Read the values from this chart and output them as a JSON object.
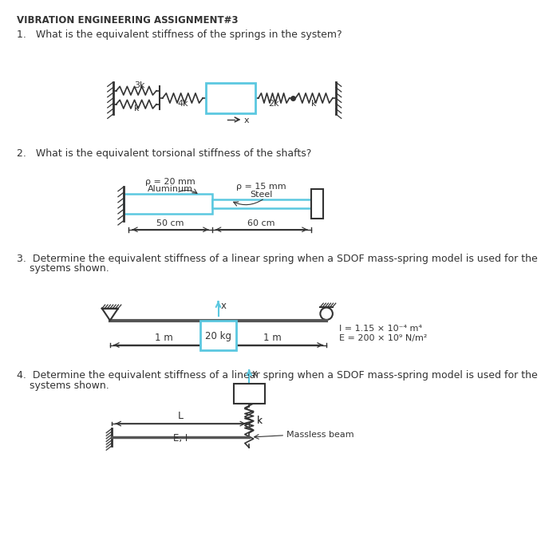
{
  "title": "VIBRATION ENGINEERING ASSIGNMENT#3",
  "q1_text": "1.   What is the equivalent stiffness of the springs in the system?",
  "q2_text": "2.   What is the equivalent torsional stiffness of the shafts?",
  "q3_text1": "3.  Determine the equivalent stiffness of a linear spring when a SDOF mass-spring model is used for the",
  "q3_text2": "    systems shown.",
  "q4_text1": "4.  Determine the equivalent stiffness of a linear spring when a SDOF mass-spring model is used for the",
  "q4_text2": "    systems shown.",
  "cyan": "#5bc8e0",
  "dark": "#333333",
  "bg": "#ffffff",
  "q3_E": "E = 200 × 10⁹ N/m²",
  "q3_I": "I = 1.15 × 10⁻⁴ m⁴",
  "q2_dim1": "50 cm",
  "q2_dim2": "60 cm",
  "q2_alum": "Aluminum",
  "q2_alum_r": "ρ = 20 mm",
  "q2_steel": "Steel",
  "q2_steel_r": "ρ = 15 mm"
}
